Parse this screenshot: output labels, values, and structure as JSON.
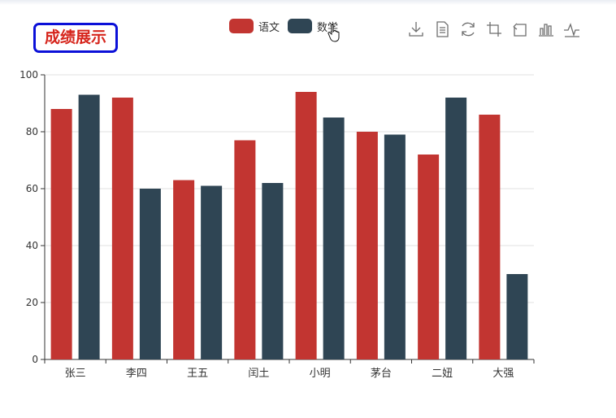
{
  "title": "成绩展示",
  "legend": [
    {
      "name": "语文",
      "color": "#c23531"
    },
    {
      "name": "数学",
      "color": "#2f4554"
    }
  ],
  "toolbox": [
    "download-icon",
    "data-view-icon",
    "restore-icon",
    "zoom-icon",
    "zoom-back-icon",
    "bar-chart-icon",
    "line-chart-icon"
  ],
  "chart_data": {
    "type": "bar",
    "title": "成绩展示",
    "categories": [
      "张三",
      "李四",
      "王五",
      "闰土",
      "小明",
      "茅台",
      "二妞",
      "大强"
    ],
    "series": [
      {
        "name": "语文",
        "color": "#c23531",
        "values": [
          88,
          92,
          63,
          77,
          94,
          80,
          72,
          86
        ]
      },
      {
        "name": "数学",
        "color": "#2f4554",
        "values": [
          93,
          60,
          61,
          62,
          85,
          79,
          92,
          30
        ]
      }
    ],
    "ylim": [
      0,
      100
    ],
    "yticks": [
      0,
      20,
      40,
      60,
      80,
      100
    ],
    "grid": true,
    "legend_position": "top-center"
  }
}
